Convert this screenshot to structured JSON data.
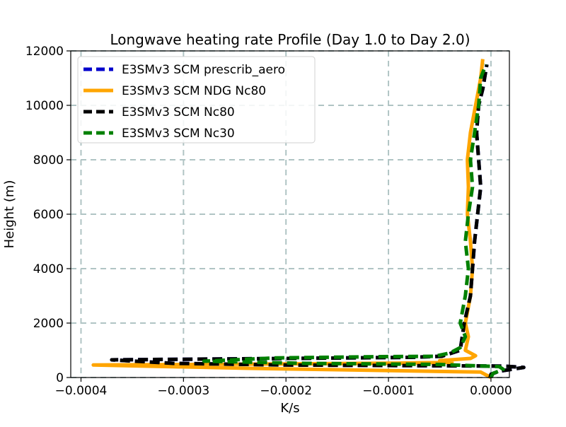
{
  "chart_data": {
    "type": "line",
    "title": "Longwave heating rate Profile (Day 1.0 to Day 2.0)",
    "xlabel": "K/s",
    "ylabel": "Height (m)",
    "xlim": [
      -0.00041,
      1.8e-05
    ],
    "ylim": [
      0,
      12000
    ],
    "xticks": [
      -0.0004,
      -0.0003,
      -0.0002,
      -0.0001,
      0.0
    ],
    "xtick_labels": [
      "−0.0004",
      "−0.0003",
      "−0.0002",
      "−0.0001",
      "0.0000"
    ],
    "yticks": [
      0,
      2000,
      4000,
      6000,
      8000,
      10000,
      12000
    ],
    "ytick_labels": [
      "0",
      "2000",
      "4000",
      "6000",
      "8000",
      "10000",
      "12000"
    ],
    "grid": true,
    "grid_style": "dashed",
    "legend_position": "top-left",
    "series": [
      {
        "name": "E3SMv3 SCM prescrib_aero",
        "color": "#0000cc",
        "dash": true,
        "points": [
          [
            -8e-07,
            0
          ],
          [
            3e-08,
            120
          ],
          [
            8e-06,
            230
          ],
          [
            3.2e-05,
            370
          ],
          [
            1.2e-05,
            420
          ],
          [
            -0.0002,
            460
          ],
          [
            -0.00031,
            520
          ],
          [
            -0.00037,
            650
          ],
          [
            -0.0002,
            700
          ],
          [
            -8e-05,
            740
          ],
          [
            -4.8e-05,
            780
          ],
          [
            -3e-05,
            1000
          ],
          [
            -2.6e-05,
            2000
          ],
          [
            -2e-05,
            3000
          ],
          [
            -1.8e-05,
            4000
          ],
          [
            -1.6e-05,
            5000
          ],
          [
            -1.3e-05,
            6000
          ],
          [
            -1e-05,
            7000
          ],
          [
            -1.2e-05,
            8000
          ],
          [
            -1.4e-05,
            9000
          ],
          [
            -1.2e-05,
            10000
          ],
          [
            -8e-06,
            10600
          ],
          [
            -4e-06,
            11500
          ]
        ]
      },
      {
        "name": "E3SMv3 SCM NDG Nc80",
        "color": "#ffa500",
        "dash": false,
        "points": [
          [
            0.0,
            0
          ],
          [
            -1e-05,
            200
          ],
          [
            -0.00024,
            340
          ],
          [
            -0.000388,
            460
          ],
          [
            -0.0002,
            500
          ],
          [
            -9e-05,
            530
          ],
          [
            -3.8e-05,
            560
          ],
          [
            -5e-05,
            620
          ],
          [
            -2e-05,
            700
          ],
          [
            -1.5e-05,
            800
          ],
          [
            -2.5e-05,
            1000
          ],
          [
            -2.2e-05,
            1500
          ],
          [
            -2.5e-05,
            2000
          ],
          [
            -2e-05,
            3000
          ],
          [
            -1.8e-05,
            4000
          ],
          [
            -2e-05,
            5000
          ],
          [
            -2.3e-05,
            6000
          ],
          [
            -2.2e-05,
            7000
          ],
          [
            -2.3e-05,
            8000
          ],
          [
            -2e-05,
            9000
          ],
          [
            -1.5e-05,
            10000
          ],
          [
            -1e-05,
            11000
          ],
          [
            -8e-06,
            11700
          ]
        ]
      },
      {
        "name": "E3SMv3 SCM Nc80",
        "color": "#000000",
        "dash": true,
        "points": [
          [
            -8e-07,
            0
          ],
          [
            3e-08,
            120
          ],
          [
            8e-06,
            230
          ],
          [
            3.2e-05,
            370
          ],
          [
            1.2e-05,
            420
          ],
          [
            -0.0002,
            460
          ],
          [
            -0.00031,
            520
          ],
          [
            -0.00037,
            650
          ],
          [
            -0.0002,
            700
          ],
          [
            -8e-05,
            740
          ],
          [
            -4.8e-05,
            780
          ],
          [
            -3e-05,
            1000
          ],
          [
            -2.6e-05,
            2000
          ],
          [
            -2e-05,
            3000
          ],
          [
            -1.8e-05,
            4000
          ],
          [
            -1.6e-05,
            5000
          ],
          [
            -1.3e-05,
            6000
          ],
          [
            -1e-05,
            7000
          ],
          [
            -1.2e-05,
            8000
          ],
          [
            -1.4e-05,
            9000
          ],
          [
            -1.2e-05,
            10000
          ],
          [
            -8e-06,
            10600
          ],
          [
            -4e-06,
            11500
          ]
        ]
      },
      {
        "name": "E3SMv3 SCM Nc30",
        "color": "#008000",
        "dash": true,
        "points": [
          [
            0.0,
            0
          ],
          [
            2e-06,
            150
          ],
          [
            1.2e-05,
            300
          ],
          [
            8e-06,
            400
          ],
          [
            -5e-05,
            480
          ],
          [
            -0.00018,
            520
          ],
          [
            -0.00028,
            600
          ],
          [
            -0.00021,
            720
          ],
          [
            -0.0001,
            770
          ],
          [
            -5.5e-05,
            780
          ],
          [
            -4e-05,
            900
          ],
          [
            -3e-05,
            1100
          ],
          [
            -2.5e-05,
            1500
          ],
          [
            -3e-05,
            2000
          ],
          [
            -2.5e-05,
            3000
          ],
          [
            -2.2e-05,
            4000
          ],
          [
            -2.5e-05,
            5000
          ],
          [
            -2.2e-05,
            6000
          ],
          [
            -1.8e-05,
            7000
          ],
          [
            -2e-05,
            8000
          ],
          [
            -1.6e-05,
            9000
          ],
          [
            -1.2e-05,
            10000
          ],
          [
            -1e-05,
            11000
          ],
          [
            -5e-06,
            11500
          ]
        ]
      }
    ]
  }
}
